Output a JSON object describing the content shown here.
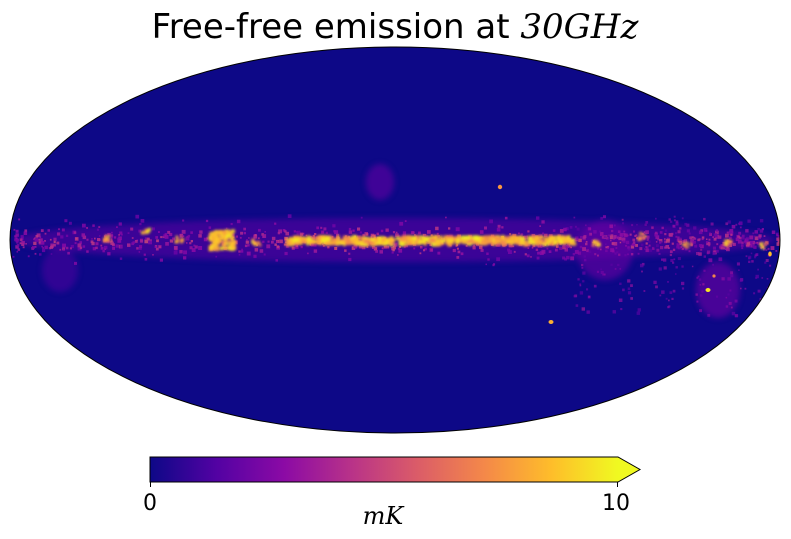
{
  "title": {
    "text": "Free-free emission at ",
    "math": "30GHz"
  },
  "map": {
    "projection": "Mollweide",
    "quantity": "Free-free emission",
    "background_color": "#0d0887",
    "features": [
      {
        "name": "galactic-plane-band"
      },
      {
        "name": "cygnus-region"
      },
      {
        "name": "north-polar-spur-faint"
      },
      {
        "name": "gum-nebula-region"
      },
      {
        "name": "orion-region"
      },
      {
        "name": "compact-source-north"
      },
      {
        "name": "compact-source-south"
      }
    ]
  },
  "colorbar": {
    "colormap": "plasma",
    "colors": [
      "#0d0887",
      "#5302a3",
      "#8b0aa5",
      "#b83289",
      "#db5c68",
      "#f48849",
      "#febd2a",
      "#f0f921"
    ],
    "min_label": "0",
    "max_label": "10",
    "min": 0,
    "max": 10,
    "extend": "max",
    "unit": "mK"
  }
}
